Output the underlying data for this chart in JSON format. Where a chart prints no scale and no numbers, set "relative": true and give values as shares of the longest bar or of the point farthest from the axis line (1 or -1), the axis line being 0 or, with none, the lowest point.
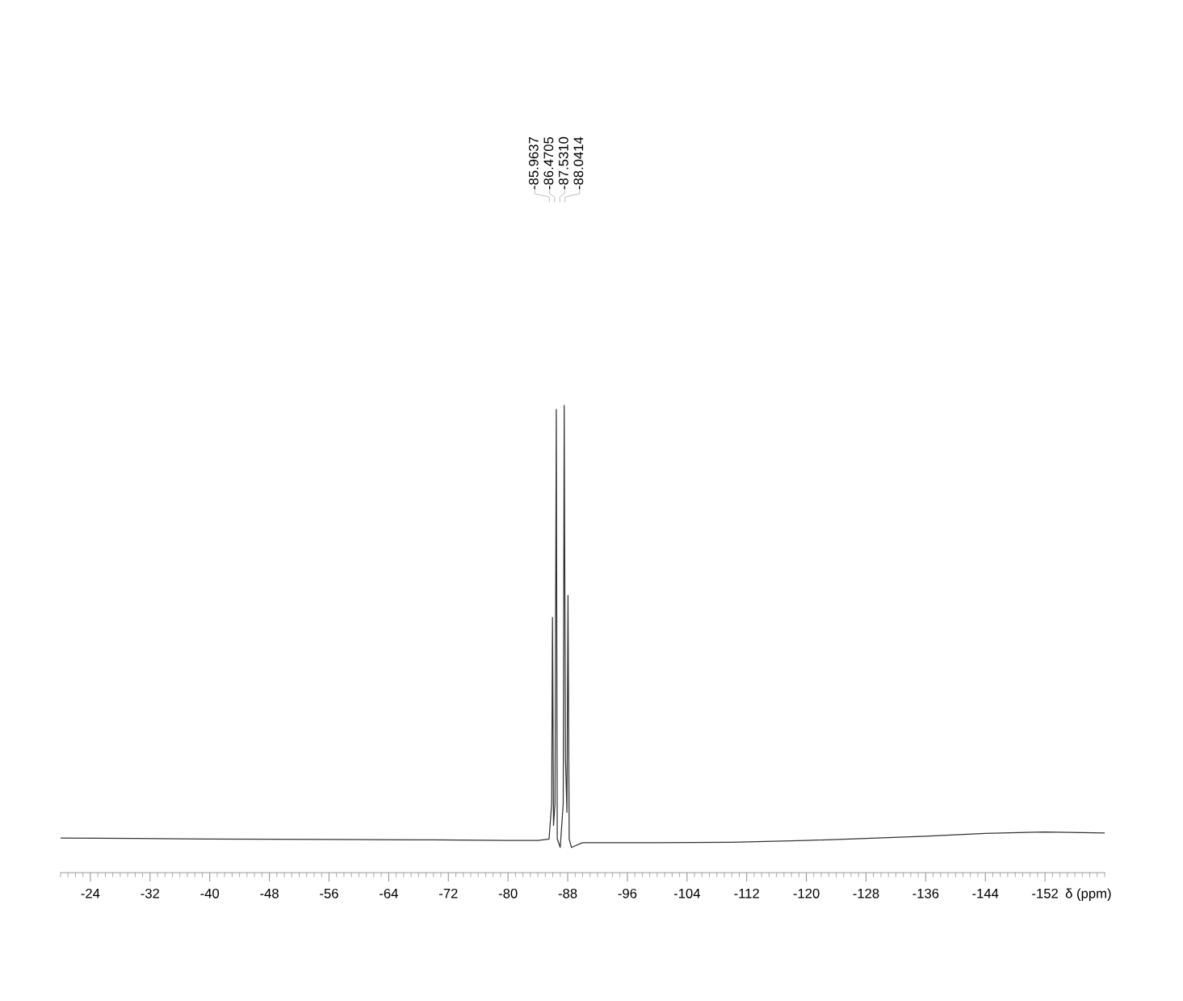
{
  "chart_data": {
    "type": "line",
    "relative": true,
    "xlabel": "δ (ppm)",
    "xlim": [
      -20,
      -160
    ],
    "xticks": [
      -24,
      -32,
      -40,
      -48,
      -56,
      -64,
      -72,
      -80,
      -88,
      -96,
      -104,
      -112,
      -120,
      -128,
      -136,
      -144,
      -152
    ],
    "x": [
      -20,
      -30,
      -40,
      -56,
      -70,
      -80,
      -84,
      -85.5,
      -85.85,
      -85.96,
      -86.1,
      -86.3,
      -86.47,
      -86.6,
      -87.0,
      -87.4,
      -87.53,
      -87.7,
      -87.9,
      -88.04,
      -88.2,
      -88.5,
      -90,
      -100,
      -110,
      -120,
      -128,
      -136,
      -144,
      -152,
      -160
    ],
    "series": [
      {
        "color": "#333333",
        "values": [
          0.074,
          0.073,
          0.072,
          0.071,
          0.07,
          0.069,
          0.069,
          0.072,
          0.148,
          0.546,
          0.101,
          0.148,
          0.991,
          0.072,
          0.054,
          0.148,
          1.0,
          0.243,
          0.129,
          0.593,
          0.072,
          0.054,
          0.064,
          0.064,
          0.065,
          0.069,
          0.073,
          0.078,
          0.084,
          0.087,
          0.085
        ]
      }
    ],
    "annotations": [
      "-85.9637",
      "-86.4705",
      "-87.5310",
      "-88.0414"
    ]
  }
}
